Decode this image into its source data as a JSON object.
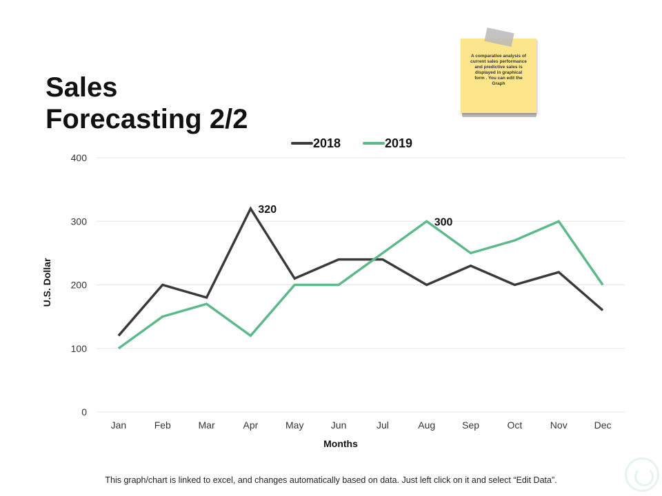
{
  "slide": {
    "title_line1": "Sales",
    "title_line2": "Forecasting 2/2",
    "note_text": "A comparative analysis of current sales performance and predictive sales is displayed in graphical form . You can edit the Graph",
    "footer": "This graph/chart is linked to excel, and changes automatically based on data. Just left click on it and select “Edit Data”."
  },
  "chart_data": {
    "type": "line",
    "title": "",
    "xlabel": "Months",
    "ylabel": "U.S. Dollar",
    "ylim": [
      0,
      400
    ],
    "yticks": [
      0,
      100,
      200,
      300,
      400
    ],
    "grid": true,
    "legend_position": "top-center",
    "categories": [
      "Jan",
      "Feb",
      "Mar",
      "Apr",
      "May",
      "Jun",
      "Jul",
      "Aug",
      "Sep",
      "Oct",
      "Nov",
      "Dec"
    ],
    "series": [
      {
        "name": "2018",
        "color": "#3a3a3a",
        "values": [
          120,
          200,
          180,
          320,
          210,
          240,
          240,
          200,
          230,
          200,
          220,
          160
        ]
      },
      {
        "name": "2019",
        "color": "#5db88a",
        "values": [
          100,
          150,
          170,
          120,
          200,
          200,
          250,
          300,
          250,
          270,
          300,
          200
        ]
      }
    ],
    "annotations": [
      {
        "series": 0,
        "index": 3,
        "text": "320"
      },
      {
        "series": 1,
        "index": 7,
        "text": "300"
      }
    ]
  }
}
